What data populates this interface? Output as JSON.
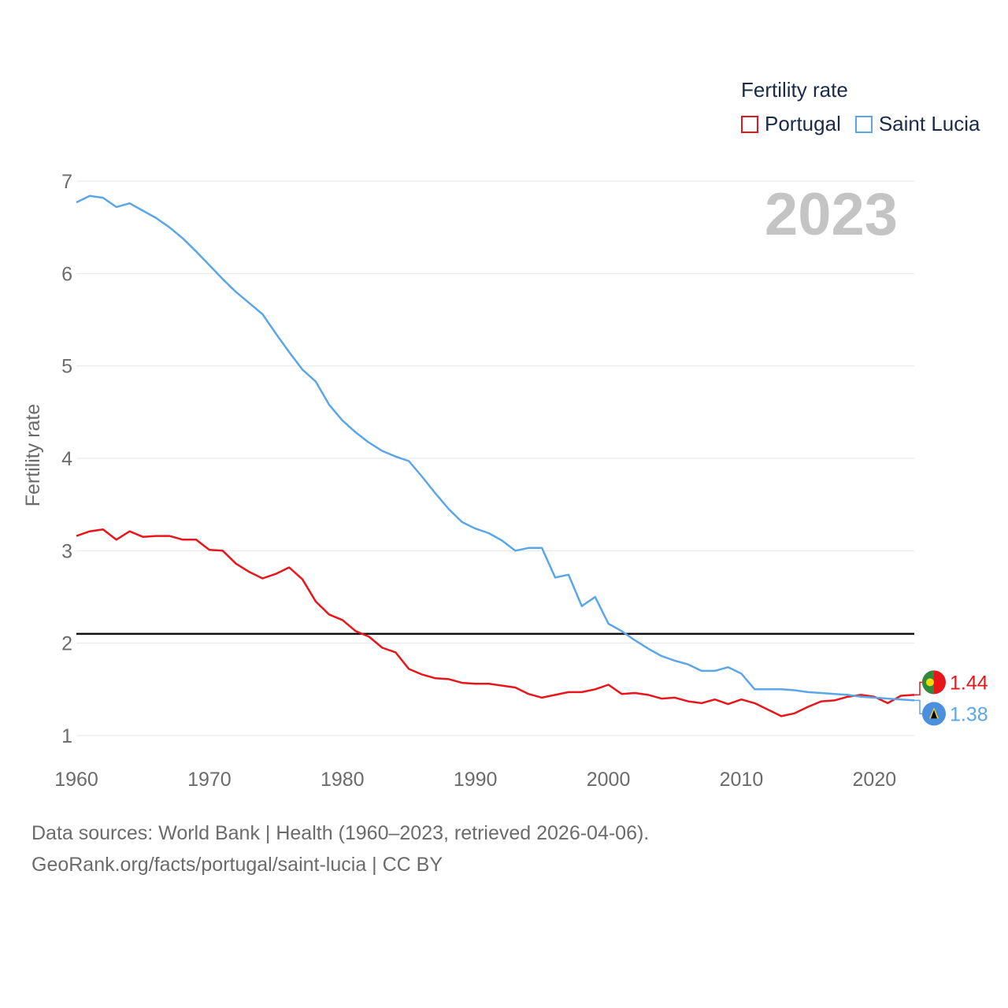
{
  "legend": {
    "title": "Fertility rate",
    "items": [
      {
        "label": "Portugal",
        "color": "#e8161a"
      },
      {
        "label": "Saint Lucia",
        "color": "#5ba6e8"
      }
    ]
  },
  "chart_data": {
    "type": "line",
    "ylabel": "Fertility rate",
    "xlabel": "",
    "ylim": [
      1,
      7
    ],
    "xlim": [
      1960,
      2023
    ],
    "year_label": "2023",
    "x_ticks": [
      1960,
      1970,
      1980,
      1990,
      2000,
      2010,
      2020
    ],
    "y_ticks": [
      1,
      2,
      3,
      4,
      5,
      6,
      7
    ],
    "reference_line": 2.1,
    "x": [
      1960,
      1961,
      1962,
      1963,
      1964,
      1965,
      1966,
      1967,
      1968,
      1969,
      1970,
      1971,
      1972,
      1973,
      1974,
      1975,
      1976,
      1977,
      1978,
      1979,
      1980,
      1981,
      1982,
      1983,
      1984,
      1985,
      1986,
      1987,
      1988,
      1989,
      1990,
      1991,
      1992,
      1993,
      1994,
      1995,
      1996,
      1997,
      1998,
      1999,
      2000,
      2001,
      2002,
      2003,
      2004,
      2005,
      2006,
      2007,
      2008,
      2009,
      2010,
      2011,
      2012,
      2013,
      2014,
      2015,
      2016,
      2017,
      2018,
      2019,
      2020,
      2021,
      2022,
      2023
    ],
    "series": [
      {
        "name": "Portugal",
        "color": "#e8161a",
        "end_label": "1.44",
        "values": [
          3.16,
          3.21,
          3.23,
          3.12,
          3.21,
          3.15,
          3.16,
          3.16,
          3.12,
          3.12,
          3.01,
          3.0,
          2.86,
          2.77,
          2.7,
          2.75,
          2.82,
          2.69,
          2.45,
          2.31,
          2.25,
          2.13,
          2.07,
          1.95,
          1.9,
          1.72,
          1.66,
          1.62,
          1.61,
          1.57,
          1.56,
          1.56,
          1.54,
          1.52,
          1.45,
          1.41,
          1.44,
          1.47,
          1.47,
          1.5,
          1.55,
          1.45,
          1.46,
          1.44,
          1.4,
          1.41,
          1.37,
          1.35,
          1.39,
          1.34,
          1.39,
          1.35,
          1.28,
          1.21,
          1.24,
          1.31,
          1.37,
          1.38,
          1.42,
          1.44,
          1.42,
          1.35,
          1.43,
          1.44
        ]
      },
      {
        "name": "Saint Lucia",
        "color": "#5ba6e8",
        "end_label": "1.38",
        "values": [
          6.77,
          6.84,
          6.82,
          6.72,
          6.76,
          6.68,
          6.6,
          6.5,
          6.38,
          6.24,
          6.09,
          5.94,
          5.8,
          5.68,
          5.56,
          5.35,
          5.15,
          4.96,
          4.83,
          4.58,
          4.41,
          4.28,
          4.17,
          4.08,
          4.02,
          3.97,
          3.8,
          3.62,
          3.45,
          3.31,
          3.24,
          3.19,
          3.11,
          3.0,
          3.03,
          3.03,
          2.71,
          2.74,
          2.4,
          2.5,
          2.21,
          2.13,
          2.03,
          1.94,
          1.86,
          1.81,
          1.77,
          1.7,
          1.7,
          1.74,
          1.67,
          1.5,
          1.5,
          1.5,
          1.49,
          1.47,
          1.46,
          1.45,
          1.44,
          1.42,
          1.41,
          1.4,
          1.39,
          1.38
        ]
      }
    ]
  },
  "footer": {
    "line1": "Data sources: World Bank | Health (1960–2023, retrieved 2026-04-06).",
    "line2": "GeoRank.org/facts/portugal/saint-lucia | CC BY"
  }
}
